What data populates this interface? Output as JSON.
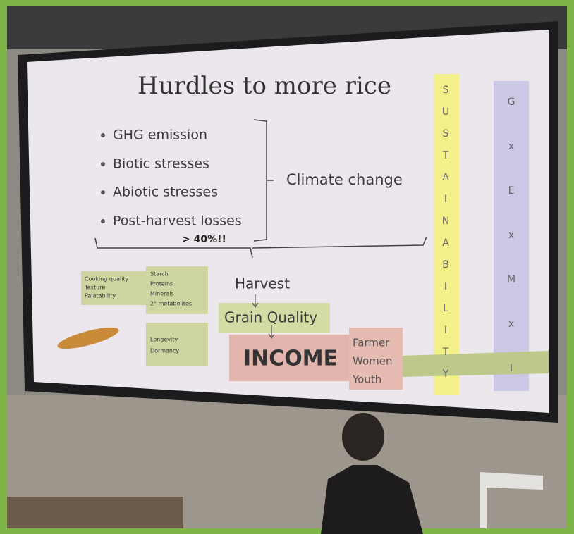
{
  "slide": {
    "title": "Hurdles to more rice",
    "bullets": [
      "GHG emission",
      "Biotic stresses",
      "Abiotic stresses",
      "Post-harvest losses"
    ],
    "loss_note": "> 40%!!",
    "bracket_label": "Climate change",
    "harvest": "Harvest",
    "grain_quality": "Grain Quality",
    "income": "INCOME",
    "quality_traits": [
      "Cooking quality",
      "Texture",
      "Palatability"
    ],
    "composition": [
      "Starch",
      "Proteins",
      "Minerals",
      "2° metabolites"
    ],
    "seed_traits": [
      "Longevity",
      "Dormancy"
    ],
    "beneficiaries": [
      "Farmer",
      "Women",
      "Youth"
    ],
    "sustainability": [
      "S",
      "U",
      "S",
      "T",
      "A",
      "I",
      "N",
      "A",
      "B",
      "I",
      "L",
      "I",
      "T",
      "Y"
    ],
    "gxexmxi": [
      "G",
      "x",
      "E",
      "x",
      "M",
      "x",
      "I"
    ]
  }
}
